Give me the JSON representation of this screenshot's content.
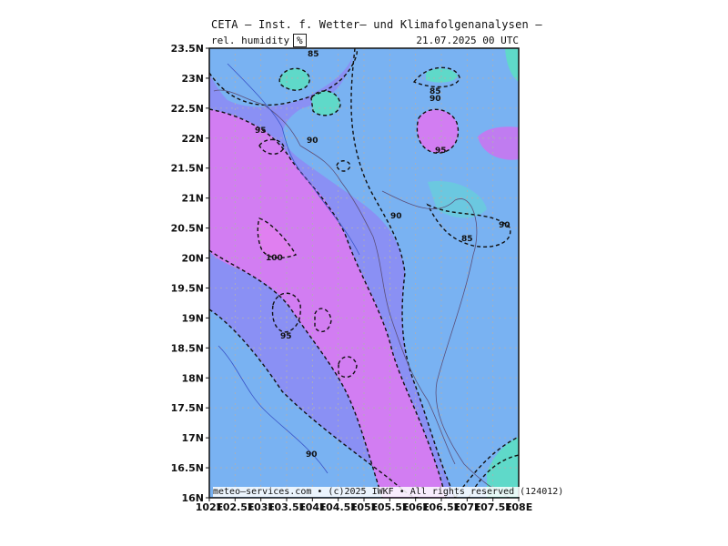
{
  "header": {
    "title": "CETA — Inst. f. Wetter— und Klimafolgenanalysen —",
    "parameter": "rel. humidity",
    "unit": "%",
    "valid_time": "21.07.2025 00 UTC"
  },
  "footer": {
    "credits": "meteo—services.com • (c)2025 IWKF • All rights reserved (124012)"
  },
  "map": {
    "lat_ticks": [
      "23.5N",
      "23N",
      "22.5N",
      "22N",
      "21.5N",
      "21N",
      "20.5N",
      "20N",
      "19.5N",
      "19N",
      "18.5N",
      "18N",
      "17.5N",
      "17N",
      "16.5N",
      "16N"
    ],
    "lon_ticks": [
      "102E",
      "102.5E",
      "103E",
      "103.5E",
      "104E",
      "104.5E",
      "105E",
      "105.5E",
      "106E",
      "106.5E",
      "107E",
      "107.5E",
      "108E"
    ],
    "lat_range": [
      16,
      23.5
    ],
    "lon_range": [
      102,
      108
    ],
    "contour_labels": [
      "85",
      "85",
      "90",
      "95",
      "90",
      "95",
      "90",
      "90",
      "85",
      "100",
      "95",
      "90"
    ],
    "colors": {
      "rh_80_85": "#5fd9c9",
      "rh_85_90": "#79b2f2",
      "rh_90_95": "#8a90f4",
      "rh_95_100": "#d27df2",
      "rh_100": "#e07ff0",
      "grid": "#b0b0b0",
      "contour": "#111111"
    }
  }
}
